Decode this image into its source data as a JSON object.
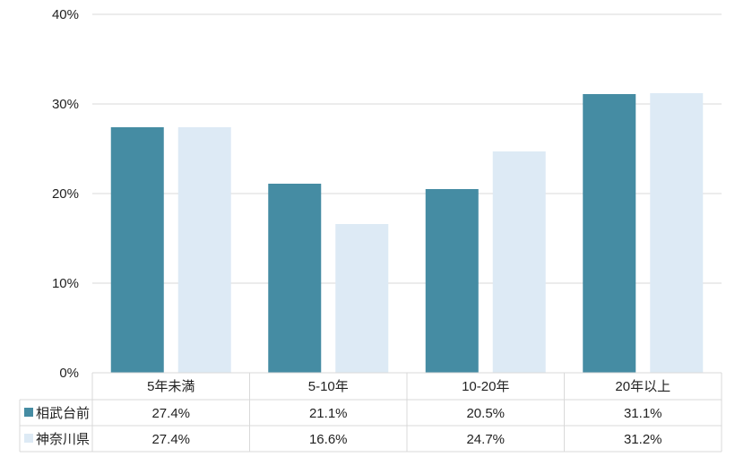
{
  "chart_data": {
    "type": "bar",
    "categories": [
      "5年未満",
      "5-10年",
      "10-20年",
      "20年以上"
    ],
    "series": [
      {
        "name": "相武台前",
        "values": [
          27.4,
          21.1,
          20.5,
          31.1
        ],
        "labels": [
          "27.4%",
          "21.1%",
          "20.5%",
          "31.1%"
        ],
        "color": "#458CA3"
      },
      {
        "name": "神奈川県",
        "values": [
          27.4,
          16.6,
          24.7,
          31.2
        ],
        "labels": [
          "27.4%",
          "16.6%",
          "24.7%",
          "31.2%"
        ],
        "color": "#DDEAF5"
      }
    ],
    "y_ticks": [
      "0%",
      "10%",
      "20%",
      "30%",
      "40%"
    ],
    "ylim": [
      0,
      40
    ],
    "grid": true,
    "legend": "data-table-left",
    "gridline_color": "#D9D9D9",
    "table_border_color": "#D9D9D9"
  }
}
